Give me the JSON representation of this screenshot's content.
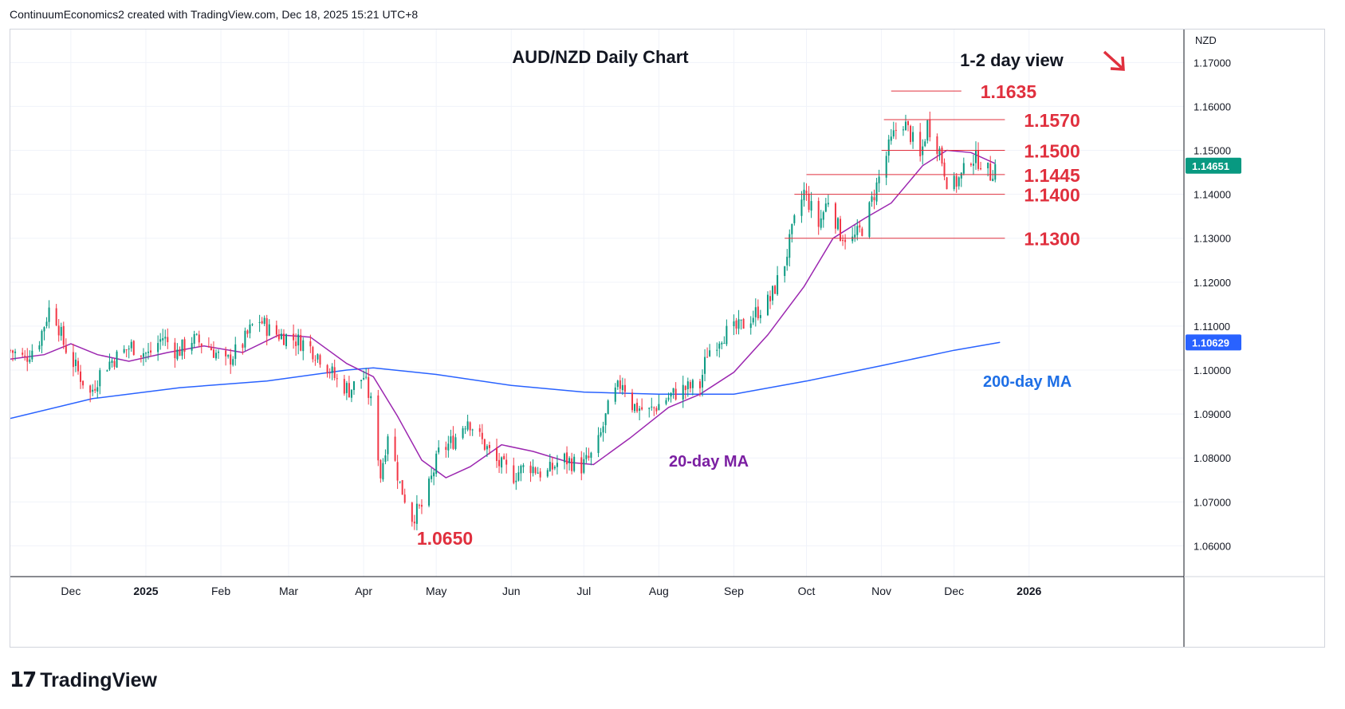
{
  "header": {
    "attribution": "ContinuumEconomics2 created with TradingView.com, Dec 18, 2025 15:21 UTC+8"
  },
  "footer": {
    "logo_mark": "17",
    "logo_text": "TradingView"
  },
  "colors": {
    "up": "#089981",
    "down": "#f23645",
    "ma20": "#9c27b0",
    "ma200": "#2962ff",
    "level": "#e0303e",
    "grid": "#f0f3fa"
  },
  "chart_data": {
    "type": "candlestick",
    "title": "AUD/NZD Daily Chart",
    "currency": "NZD",
    "y_ticks": [
      "1.17000",
      "1.16000",
      "1.15000",
      "1.14000",
      "1.13000",
      "1.12000",
      "1.11000",
      "1.10000",
      "1.09000",
      "1.08000",
      "1.07000",
      "1.06000"
    ],
    "y_tick_values": [
      1.17,
      1.16,
      1.15,
      1.14,
      1.13,
      1.12,
      1.11,
      1.1,
      1.09,
      1.08,
      1.07,
      1.06
    ],
    "ylim": [
      1.053,
      1.1775
    ],
    "x_ticks": [
      "Dec",
      "2025",
      "Feb",
      "Mar",
      "Apr",
      "May",
      "Jun",
      "Jul",
      "Aug",
      "Sep",
      "Oct",
      "Nov",
      "Dec",
      "2026"
    ],
    "x_tick_dates": [
      "2024-12-01",
      "2025-01-01",
      "2025-02-01",
      "2025-03-01",
      "2025-04-01",
      "2025-05-01",
      "2025-06-01",
      "2025-07-01",
      "2025-08-01",
      "2025-09-01",
      "2025-10-01",
      "2025-11-01",
      "2025-12-01",
      "2026-01-01"
    ],
    "xlim": [
      "2024-11-06",
      "2026-03-06"
    ],
    "current_price": {
      "label": "1.14651",
      "value": 1.14651
    },
    "ma200_price": {
      "label": "1.10629",
      "value": 1.10629
    },
    "price_path": [
      [
        "2024-11-06",
        1.1045
      ],
      [
        "2024-11-12",
        1.1025
      ],
      [
        "2024-11-18",
        1.107
      ],
      [
        "2024-11-23",
        1.1155
      ],
      [
        "2024-11-28",
        1.106
      ],
      [
        "2024-12-04",
        1.0995
      ],
      [
        "2024-12-09",
        1.0945
      ],
      [
        "2024-12-14",
        1.1005
      ],
      [
        "2024-12-20",
        1.103
      ],
      [
        "2024-12-26",
        1.1055
      ],
      [
        "2025-01-02",
        1.1035
      ],
      [
        "2025-01-08",
        1.1075
      ],
      [
        "2025-01-14",
        1.104
      ],
      [
        "2025-01-20",
        1.107
      ],
      [
        "2025-01-27",
        1.1055
      ],
      [
        "2025-02-03",
        1.1015
      ],
      [
        "2025-02-10",
        1.106
      ],
      [
        "2025-02-16",
        1.112
      ],
      [
        "2025-02-22",
        1.1085
      ],
      [
        "2025-03-01",
        1.1075
      ],
      [
        "2025-03-08",
        1.106
      ],
      [
        "2025-03-15",
        1.1025
      ],
      [
        "2025-03-21",
        1.0975
      ],
      [
        "2025-03-26",
        1.0955
      ],
      [
        "2025-04-01",
        1.0985
      ],
      [
        "2025-04-05",
        1.0905
      ],
      [
        "2025-04-08",
        1.076
      ],
      [
        "2025-04-11",
        1.086
      ],
      [
        "2025-04-16",
        1.074
      ],
      [
        "2025-04-21",
        1.0665
      ],
      [
        "2025-04-26",
        1.0695
      ],
      [
        "2025-05-02",
        1.081
      ],
      [
        "2025-05-08",
        1.084
      ],
      [
        "2025-05-14",
        1.089
      ],
      [
        "2025-05-19",
        1.0845
      ],
      [
        "2025-05-26",
        1.079
      ],
      [
        "2025-06-02",
        1.076
      ],
      [
        "2025-06-08",
        1.0785
      ],
      [
        "2025-06-15",
        1.076
      ],
      [
        "2025-06-22",
        1.08
      ],
      [
        "2025-06-30",
        1.078
      ],
      [
        "2025-07-06",
        1.0815
      ],
      [
        "2025-07-12",
        1.093
      ],
      [
        "2025-07-17",
        1.0975
      ],
      [
        "2025-07-21",
        1.092
      ],
      [
        "2025-07-28",
        1.0905
      ],
      [
        "2025-08-04",
        1.0935
      ],
      [
        "2025-08-10",
        1.0955
      ],
      [
        "2025-08-18",
        1.0965
      ],
      [
        "2025-08-21",
        1.104
      ],
      [
        "2025-08-27",
        1.108
      ],
      [
        "2025-09-03",
        1.1095
      ],
      [
        "2025-09-09",
        1.1125
      ],
      [
        "2025-09-16",
        1.116
      ],
      [
        "2025-09-22",
        1.1245
      ],
      [
        "2025-09-26",
        1.1335
      ],
      [
        "2025-09-30",
        1.1405
      ],
      [
        "2025-10-06",
        1.133
      ],
      [
        "2025-10-10",
        1.139
      ],
      [
        "2025-10-15",
        1.131
      ],
      [
        "2025-10-20",
        1.1295
      ],
      [
        "2025-10-25",
        1.133
      ],
      [
        "2025-10-30",
        1.142
      ],
      [
        "2025-11-04",
        1.1505
      ],
      [
        "2025-11-09",
        1.1575
      ],
      [
        "2025-11-13",
        1.1535
      ],
      [
        "2025-11-17",
        1.148
      ],
      [
        "2025-11-20",
        1.156
      ],
      [
        "2025-11-25",
        1.15
      ],
      [
        "2025-11-29",
        1.141
      ],
      [
        "2025-12-04",
        1.144
      ],
      [
        "2025-12-08",
        1.1485
      ],
      [
        "2025-12-12",
        1.1475
      ],
      [
        "2025-12-16",
        1.1445
      ],
      [
        "2025-12-18",
        1.1465
      ]
    ],
    "ma20_path": [
      [
        "2024-11-06",
        1.1025
      ],
      [
        "2024-11-20",
        1.1035
      ],
      [
        "2024-12-01",
        1.106
      ],
      [
        "2024-12-12",
        1.1035
      ],
      [
        "2024-12-25",
        1.102
      ],
      [
        "2025-01-10",
        1.104
      ],
      [
        "2025-01-25",
        1.1055
      ],
      [
        "2025-02-10",
        1.104
      ],
      [
        "2025-02-25",
        1.108
      ],
      [
        "2025-03-10",
        1.1075
      ],
      [
        "2025-03-25",
        1.1015
      ],
      [
        "2025-04-05",
        1.0985
      ],
      [
        "2025-04-15",
        1.0895
      ],
      [
        "2025-04-25",
        1.0795
      ],
      [
        "2025-05-05",
        1.0755
      ],
      [
        "2025-05-15",
        1.078
      ],
      [
        "2025-05-28",
        1.083
      ],
      [
        "2025-06-10",
        1.0815
      ],
      [
        "2025-06-25",
        1.079
      ],
      [
        "2025-07-05",
        1.0785
      ],
      [
        "2025-07-20",
        1.0845
      ],
      [
        "2025-08-05",
        1.0915
      ],
      [
        "2025-08-18",
        1.0945
      ],
      [
        "2025-09-01",
        1.0995
      ],
      [
        "2025-09-15",
        1.108
      ],
      [
        "2025-09-30",
        1.119
      ],
      [
        "2025-10-12",
        1.13
      ],
      [
        "2025-10-25",
        1.1345
      ],
      [
        "2025-11-05",
        1.138
      ],
      [
        "2025-11-18",
        1.1465
      ],
      [
        "2025-11-28",
        1.15
      ],
      [
        "2025-12-08",
        1.1495
      ],
      [
        "2025-12-18",
        1.147
      ]
    ],
    "ma200_path": [
      [
        "2024-11-06",
        1.089
      ],
      [
        "2024-12-10",
        1.0935
      ],
      [
        "2025-01-15",
        1.096
      ],
      [
        "2025-02-20",
        1.0975
      ],
      [
        "2025-03-25",
        1.1
      ],
      [
        "2025-04-05",
        1.1005
      ],
      [
        "2025-05-01",
        1.099
      ],
      [
        "2025-06-01",
        1.0965
      ],
      [
        "2025-07-01",
        1.095
      ],
      [
        "2025-08-01",
        1.0945
      ],
      [
        "2025-09-01",
        1.0945
      ],
      [
        "2025-10-01",
        1.0975
      ],
      [
        "2025-11-01",
        1.101
      ],
      [
        "2025-12-01",
        1.1045
      ],
      [
        "2025-12-20",
        1.1063
      ]
    ],
    "levels": [
      {
        "label": "1.1635",
        "value": 1.1635,
        "from": "2025-11-05",
        "to": "2025-12-04"
      },
      {
        "label": "1.1570",
        "value": 1.157,
        "from": "2025-11-02",
        "to": "2025-12-22"
      },
      {
        "label": "1.1500",
        "value": 1.15,
        "from": "2025-11-01",
        "to": "2025-12-22"
      },
      {
        "label": "1.1445",
        "value": 1.1445,
        "from": "2025-10-01",
        "to": "2025-12-22"
      },
      {
        "label": "1.1400",
        "value": 1.14,
        "from": "2025-09-26",
        "to": "2025-12-22"
      },
      {
        "label": "1.1300",
        "value": 1.13,
        "from": "2025-09-22",
        "to": "2025-12-22"
      }
    ],
    "annotations": {
      "low_label": "1.0650",
      "view_label": "1-2 day view",
      "ma20_label": "20-day MA",
      "ma200_label": "200-day MA"
    }
  }
}
